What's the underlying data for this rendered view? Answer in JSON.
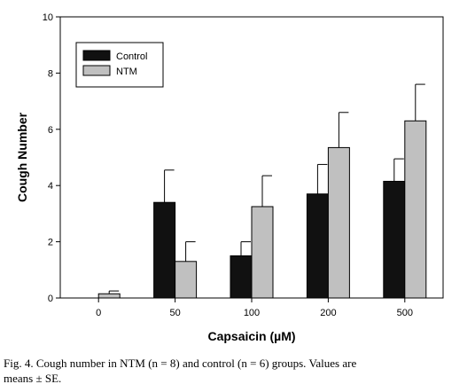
{
  "chart_data": {
    "type": "bar",
    "categories": [
      "0",
      "50",
      "100",
      "200",
      "500"
    ],
    "series": [
      {
        "name": "Control",
        "values": [
          0,
          3.4,
          1.5,
          3.7,
          4.15
        ],
        "errors": [
          0,
          1.15,
          0.5,
          1.05,
          0.8
        ],
        "color": "#111111"
      },
      {
        "name": "NTM",
        "values": [
          0.15,
          1.3,
          3.25,
          5.35,
          6.3
        ],
        "errors": [
          0.1,
          0.7,
          1.1,
          1.25,
          1.3
        ],
        "color": "#c0c0c0"
      }
    ],
    "xlabel": "Capsaicin (µM)",
    "ylabel": "Cough Number",
    "ylim": [
      0,
      10
    ],
    "yticks": [
      0,
      2,
      4,
      6,
      8,
      10
    ],
    "legend_position": "top-left",
    "grid": false
  },
  "caption": {
    "line1": "Fig. 4. Cough number in NTM (n = 8) and control (n = 6) groups. Values are",
    "line2": "means ± SE."
  }
}
